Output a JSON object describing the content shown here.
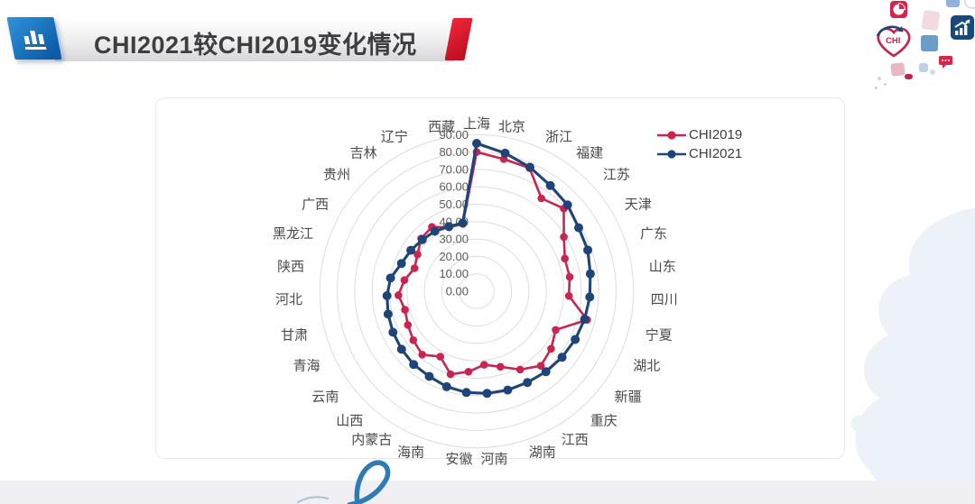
{
  "slide": {
    "title": "CHI2021较CHI2019变化情况"
  },
  "decorations": {
    "chi_logo_text": "CHI"
  },
  "chart_data": {
    "type": "radar",
    "categories": [
      "上海",
      "北京",
      "浙江",
      "福建",
      "江苏",
      "天津",
      "广东",
      "山东",
      "四川",
      "宁夏",
      "湖北",
      "新疆",
      "重庆",
      "江西",
      "湖南",
      "河南",
      "安徽",
      "海南",
      "内蒙古",
      "山西",
      "云南",
      "青海",
      "甘肃",
      "河北",
      "陕西",
      "黑龙江",
      "广西",
      "贵州",
      "吉林",
      "辽宁",
      "西藏"
    ],
    "series": [
      {
        "name": "CHI2019",
        "color": "#C82551",
        "values": [
          80,
          77.5,
          77,
          65,
          69,
          59,
          54,
          54,
          53,
          65.5,
          50.5,
          54,
          56.5,
          51.5,
          45.5,
          42.5,
          46.5,
          50,
          43,
          48,
          46,
          44,
          42.5,
          45,
          42,
          38,
          40,
          44,
          45,
          40,
          39.5
        ]
      },
      {
        "name": "CHI2021",
        "color": "#1E4478",
        "values": [
          85,
          81,
          77.5,
          74,
          72,
          69,
          68,
          66,
          65,
          64,
          63,
          62,
          61,
          60,
          59.5,
          59,
          58.5,
          57.5,
          56,
          55.5,
          54.5,
          53.5,
          52.5,
          51.5,
          50,
          46,
          44.5,
          43,
          42,
          40.5,
          40
        ]
      }
    ],
    "r_axis": {
      "min": 0,
      "max": 90,
      "step": 10,
      "tick_labels": [
        "90.00",
        "80.00",
        "70.00",
        "60.00",
        "50.00",
        "40.00",
        "30.00",
        "20.00",
        "10.00",
        "0.00"
      ]
    },
    "grid": true,
    "legend_position": "top-right",
    "start_angle_deg": 90,
    "direction": "clockwise"
  }
}
